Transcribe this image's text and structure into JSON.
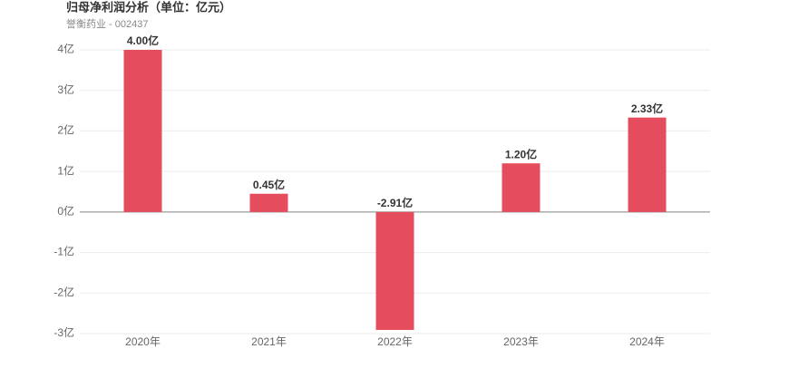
{
  "chart_data": {
    "type": "bar",
    "title": "归母净利润分析（单位：亿元）",
    "subtitle": "誉衡药业 - 002437",
    "categories": [
      "2020年",
      "2021年",
      "2022年",
      "2023年",
      "2024年"
    ],
    "values": [
      4.0,
      0.45,
      -2.91,
      1.2,
      2.33
    ],
    "value_labels": [
      "4.00亿",
      "0.45亿",
      "-2.91亿",
      "1.20亿",
      "2.33亿"
    ],
    "color": "#e54d5f",
    "ylim": [
      -3,
      4
    ],
    "yticks": [
      {
        "value": -3,
        "label": "-3亿"
      },
      {
        "value": -2,
        "label": "-2亿"
      },
      {
        "value": -1,
        "label": "-1亿"
      },
      {
        "value": 0,
        "label": "0亿"
      },
      {
        "value": 1,
        "label": "1亿"
      },
      {
        "value": 2,
        "label": "2亿"
      },
      {
        "value": 3,
        "label": "3亿"
      },
      {
        "value": 4,
        "label": "4亿"
      }
    ],
    "grid": true
  }
}
